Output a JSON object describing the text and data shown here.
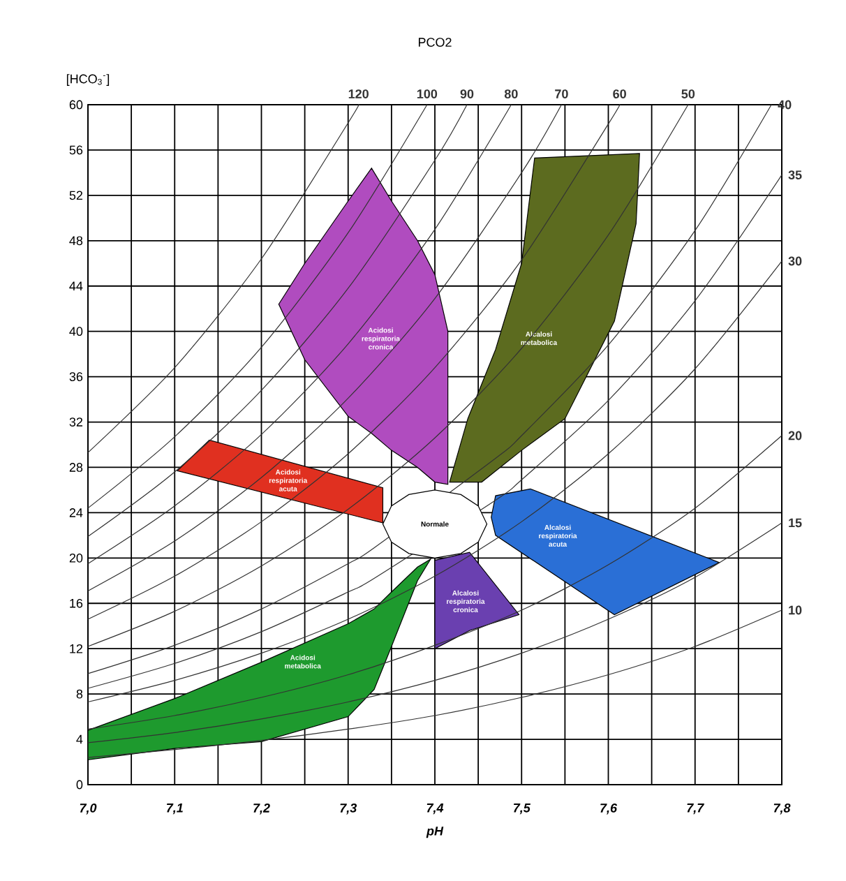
{
  "chart_data": {
    "type": "line",
    "title": "PCO2",
    "xlabel": "pH",
    "ylabel": "[HCO$_{3}$$^{-}$]",
    "xlim": [
      7.0,
      7.8
    ],
    "ylim": [
      0,
      60
    ],
    "xticks": [
      {
        "value": 7.0,
        "label": "7,0"
      },
      {
        "value": 7.1,
        "label": "7,1"
      },
      {
        "value": 7.2,
        "label": "7,2"
      },
      {
        "value": 7.3,
        "label": "7,3"
      },
      {
        "value": 7.4,
        "label": "7,4"
      },
      {
        "value": 7.5,
        "label": "7,5"
      },
      {
        "value": 7.6,
        "label": "7,6"
      },
      {
        "value": 7.7,
        "label": "7,7"
      },
      {
        "value": 7.8,
        "label": "7,8"
      }
    ],
    "yticks": [
      0,
      4,
      8,
      12,
      16,
      20,
      24,
      28,
      32,
      36,
      40,
      44,
      48,
      52,
      56,
      60
    ],
    "grid": true,
    "series": [
      {
        "type": "area",
        "name": "Acidosi respiratoria cronica",
        "color": "#b04cbf",
        "x": [
          7.22,
          7.25,
          7.3,
          7.327,
          7.35,
          7.38,
          7.4,
          7.415,
          7.415,
          7.4,
          7.38,
          7.35,
          7.327,
          7.3,
          7.25
        ],
        "values": [
          42.4,
          46,
          51.5,
          54.4,
          51.5,
          48,
          45,
          40,
          26.5,
          26.7,
          28,
          29.5,
          31,
          32.5,
          37.5
        ]
      },
      {
        "type": "area",
        "name": "Alcalosi metabolica",
        "color": "#5c6b1f",
        "x": [
          7.417,
          7.438,
          7.47,
          7.5,
          7.515,
          7.636,
          7.632,
          7.607,
          7.55,
          7.5,
          7.454
        ],
        "values": [
          26.7,
          32.3,
          38.4,
          46,
          55.3,
          55.7,
          49.5,
          40.9,
          32.3,
          29.5,
          26.7
        ]
      },
      {
        "type": "area",
        "name": "Acidosi respiratoria acuta",
        "color": "#e03020",
        "x": [
          7.103,
          7.14,
          7.34,
          7.34
        ],
        "values": [
          27.7,
          30.4,
          26.2,
          23.1
        ]
      },
      {
        "type": "area",
        "name": "Alcalosi respiratoria acuta",
        "color": "#2a6fd6",
        "x": [
          7.465,
          7.47,
          7.51,
          7.728,
          7.607,
          7.47
        ],
        "values": [
          23.6,
          25.5,
          26.1,
          19.6,
          15.0,
          22.0
        ]
      },
      {
        "type": "area",
        "name": "Alcalosi respiratoria cronica",
        "color": "#6a40b0",
        "x": [
          7.4,
          7.44,
          7.497,
          7.44,
          7.4
        ],
        "values": [
          19.8,
          20.5,
          15.0,
          13.6,
          12.0
        ]
      },
      {
        "type": "area",
        "name": "Acidosi metabolica",
        "color": "#1e9a2e",
        "x": [
          7.0,
          7.1,
          7.2,
          7.3,
          7.33,
          7.35,
          7.38,
          7.395,
          7.38,
          7.35,
          7.33,
          7.3,
          7.2,
          7.1,
          7.0
        ],
        "values": [
          4.8,
          7.6,
          10.8,
          14.2,
          15.5,
          17.0,
          19.2,
          19.9,
          18.0,
          12.2,
          8.4,
          6.0,
          3.8,
          3.2,
          2.2
        ]
      },
      {
        "name": "120",
        "color": "#333333",
        "x": [
          7.0,
          7.1,
          7.2,
          7.3,
          7.312
        ],
        "values": [
          29.3,
          36.8,
          46.4,
          58.4,
          60
        ]
      },
      {
        "name": "100",
        "color": "#333333",
        "x": [
          7.0,
          7.1,
          7.2,
          7.3,
          7.391
        ],
        "values": [
          24.4,
          30.7,
          38.6,
          48.7,
          60
        ]
      },
      {
        "name": "90",
        "color": "#333333",
        "x": [
          7.0,
          7.1,
          7.2,
          7.3,
          7.4,
          7.437
        ],
        "values": [
          21.9,
          27.6,
          34.8,
          43.8,
          55.1,
          60
        ]
      },
      {
        "name": "80",
        "color": "#333333",
        "x": [
          7.0,
          7.1,
          7.2,
          7.3,
          7.4,
          7.488
        ],
        "values": [
          19.5,
          24.6,
          30.9,
          38.9,
          49.0,
          60
        ]
      },
      {
        "name": "70",
        "color": "#333333",
        "x": [
          7.0,
          7.1,
          7.2,
          7.3,
          7.4,
          7.5,
          7.546
        ],
        "values": [
          17.1,
          21.5,
          27.1,
          34.1,
          42.9,
          54.0,
          60
        ]
      },
      {
        "name": "60",
        "color": "#333333",
        "x": [
          7.0,
          7.1,
          7.2,
          7.3,
          7.4,
          7.5,
          7.6,
          7.613
        ],
        "values": [
          14.6,
          18.4,
          23.2,
          29.2,
          36.8,
          46.3,
          58.3,
          60
        ]
      },
      {
        "name": "50",
        "color": "#333333",
        "x": [
          7.0,
          7.1,
          7.2,
          7.3,
          7.4,
          7.5,
          7.6,
          7.692
        ],
        "values": [
          12.2,
          15.3,
          19.3,
          24.3,
          30.6,
          38.5,
          48.5,
          60
        ]
      },
      {
        "name": "40",
        "color": "#333333",
        "x": [
          7.0,
          7.1,
          7.2,
          7.3,
          7.33,
          7.47,
          7.5,
          7.6,
          7.7,
          7.788
        ],
        "values": [
          9.8,
          12.3,
          15.5,
          19.5,
          20.9,
          28.8,
          30.8,
          38.8,
          48.9,
          60
        ]
      },
      {
        "name": "35",
        "color": "#333333",
        "x": [
          7.0,
          7.1,
          7.2,
          7.3,
          7.33,
          7.47,
          7.5,
          7.6,
          7.7,
          7.8
        ],
        "values": [
          8.5,
          10.7,
          13.5,
          17.0,
          18.2,
          25.1,
          26.9,
          33.9,
          42.7,
          53.8
        ]
      },
      {
        "name": "30",
        "color": "#333333",
        "x": [
          7.0,
          7.1,
          7.2,
          7.3,
          7.4,
          7.5,
          7.6,
          7.7,
          7.8
        ],
        "values": [
          7.3,
          9.2,
          11.6,
          14.6,
          18.4,
          23.2,
          29.2,
          36.7,
          46.2
        ]
      },
      {
        "name": "20",
        "color": "#333333",
        "x": [
          7.0,
          7.1,
          7.2,
          7.3,
          7.4,
          7.5,
          7.6,
          7.7,
          7.8
        ],
        "values": [
          4.9,
          6.1,
          7.7,
          9.7,
          12.3,
          15.4,
          19.4,
          24.4,
          30.8
        ]
      },
      {
        "name": "15",
        "color": "#333333",
        "x": [
          7.0,
          7.1,
          7.2,
          7.3,
          7.4,
          7.5,
          7.6,
          7.7,
          7.8
        ],
        "values": [
          3.7,
          4.6,
          5.8,
          7.3,
          9.2,
          11.6,
          14.6,
          18.3,
          23.1
        ]
      },
      {
        "name": "10",
        "color": "#333333",
        "x": [
          7.0,
          7.1,
          7.2,
          7.3,
          7.4,
          7.5,
          7.6,
          7.7,
          7.8
        ],
        "values": [
          2.4,
          3.1,
          3.9,
          4.9,
          6.1,
          7.7,
          9.7,
          12.2,
          15.4
        ]
      },
      {
        "type": "area",
        "name": "Normale",
        "color": "#ffffff",
        "x": [
          7.34,
          7.35,
          7.37,
          7.4,
          7.43,
          7.45,
          7.46,
          7.45,
          7.43,
          7.4,
          7.37,
          7.35
        ],
        "values": [
          23,
          24.6,
          25.6,
          26,
          25.6,
          24.6,
          23,
          21.4,
          20.4,
          20,
          20.4,
          21.4
        ]
      }
    ]
  }
}
